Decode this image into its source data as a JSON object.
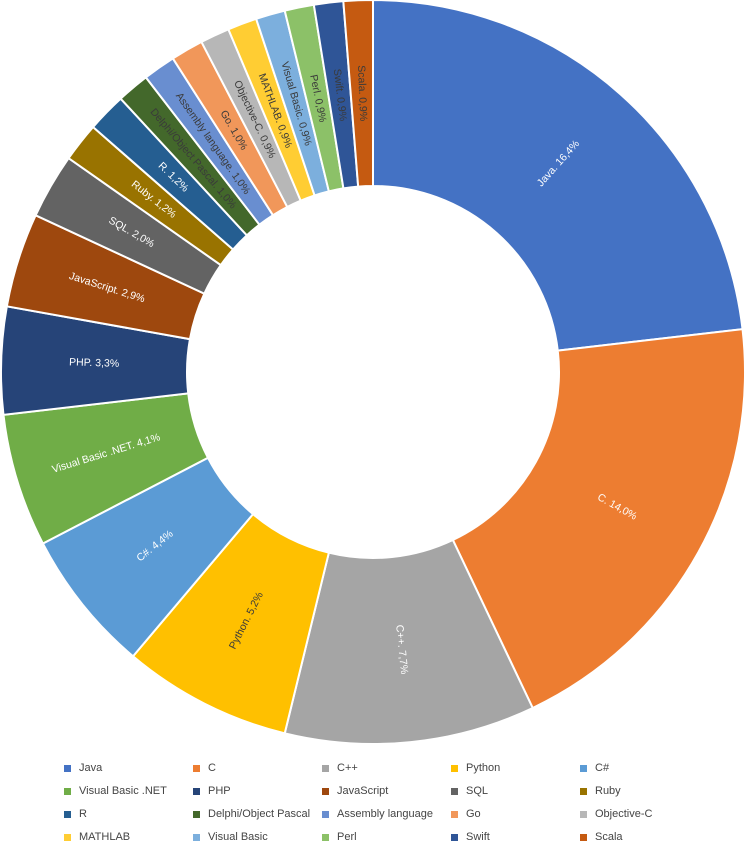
{
  "chart_data": {
    "type": "pie",
    "donut": true,
    "slices": [
      {
        "name": "Java",
        "value": 16.4,
        "label": "Java. 16,4%",
        "color": "#4472C4",
        "label_color": "#ffffff"
      },
      {
        "name": "C",
        "value": 14.0,
        "label": "C. 14,0%",
        "color": "#ED7D31",
        "label_color": "#ffffff"
      },
      {
        "name": "C++",
        "value": 7.7,
        "label": "C++. 7,7%",
        "color": "#A5A5A5",
        "label_color": "#ffffff"
      },
      {
        "name": "Python",
        "value": 5.2,
        "label": "Python. 5,2%",
        "color": "#FFC000",
        "label_color": "#3a3a3a"
      },
      {
        "name": "C#",
        "value": 4.4,
        "label": "C#. 4,4%",
        "color": "#5B9BD5",
        "label_color": "#ffffff"
      },
      {
        "name": "Visual Basic .NET",
        "value": 4.1,
        "label": "Visual Basic .NET. 4,1%",
        "color": "#70AD47",
        "label_color": "#ffffff"
      },
      {
        "name": "PHP",
        "value": 3.3,
        "label": "PHP. 3,3%",
        "color": "#264478",
        "label_color": "#ffffff"
      },
      {
        "name": "JavaScript",
        "value": 2.9,
        "label": "JavaScript. 2,9%",
        "color": "#9E480E",
        "label_color": "#ffffff"
      },
      {
        "name": "SQL",
        "value": 2.0,
        "label": "SQL. 2,0%",
        "color": "#636363",
        "label_color": "#ffffff"
      },
      {
        "name": "Ruby",
        "value": 1.2,
        "label": "Ruby. 1,2%",
        "color": "#997300",
        "label_color": "#ffffff"
      },
      {
        "name": "R",
        "value": 1.2,
        "label": "R. 1,2%",
        "color": "#255E91",
        "label_color": "#ffffff"
      },
      {
        "name": "Delphi/Object Pascal",
        "value": 1.0,
        "label": "Delphi/Object Pascal. 1,0%",
        "color": "#43682B",
        "label_color": "#3a3a3a"
      },
      {
        "name": "Assembly language",
        "value": 1.0,
        "label": "Assembly language. 1,0%",
        "color": "#698ED0",
        "label_color": "#3a3a3a"
      },
      {
        "name": "Go",
        "value": 1.0,
        "label": "Go. 1,0%",
        "color": "#F1975A",
        "label_color": "#3a3a3a"
      },
      {
        "name": "Objective-C",
        "value": 0.9,
        "label": "Objective-C. 0,9%",
        "color": "#B7B7B7",
        "label_color": "#3a3a3a"
      },
      {
        "name": "MATHLAB",
        "value": 0.9,
        "label": "MATHLAB. 0,9%",
        "color": "#FFCD33",
        "label_color": "#3a3a3a"
      },
      {
        "name": "Visual Basic",
        "value": 0.9,
        "label": "Visual Basic. 0,9%",
        "color": "#7CAFDD",
        "label_color": "#3a3a3a"
      },
      {
        "name": "Perl",
        "value": 0.9,
        "label": "Perl. 0,9%",
        "color": "#8CC168",
        "label_color": "#3a3a3a"
      },
      {
        "name": "Swift",
        "value": 0.9,
        "label": "Swift. 0,9%",
        "color": "#2F5597",
        "label_color": "#3a3a3a"
      },
      {
        "name": "Scala",
        "value": 0.9,
        "label": "Scala. 0,9%",
        "color": "#C55A11",
        "label_color": "#3a3a3a"
      }
    ],
    "legend": {
      "placement": "bottom",
      "entries": [
        "Java",
        "C",
        "C++",
        "Python",
        "C#",
        "Visual Basic .NET",
        "PHP",
        "JavaScript",
        "SQL",
        "Ruby",
        "R",
        "Delphi/Object Pascal",
        "Assembly language",
        "Go",
        "Objective-C",
        "MATHLAB",
        "Visual Basic",
        "Perl",
        "Swift",
        "Scala"
      ]
    }
  }
}
